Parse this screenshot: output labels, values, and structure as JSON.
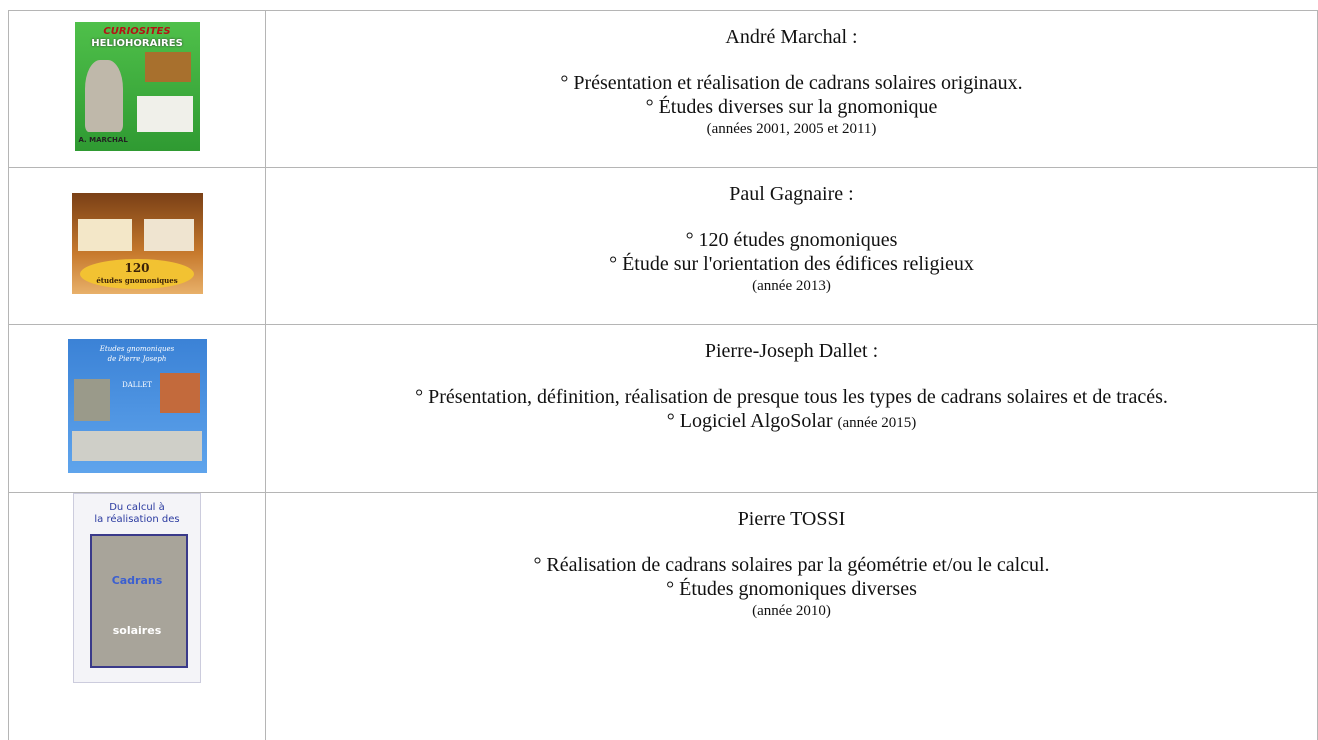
{
  "rows": [
    {
      "cover": [
        "CURIOSITES",
        "HELIOHORAIRES",
        "A. MARCHAL"
      ],
      "name": "André Marchal :",
      "items": [
        "° Présentation et réalisation de cadrans solaires originaux.",
        "° Études diverses sur la gnomonique"
      ],
      "note": "(années 2001, 2005 et 2011)"
    },
    {
      "cover": [
        "120",
        "études gnomoniques"
      ],
      "name": "Paul Gagnaire  :",
      "items": [
        "° 120 études gnomoniques",
        "° Étude sur l'orientation des édifices religieux"
      ],
      "note": "(année 2013)"
    },
    {
      "cover": [
        "Etudes gnomoniques",
        "de Pierre Joseph",
        "DALLET"
      ],
      "name": "Pierre-Joseph Dallet  :",
      "items": [
        "° Présentation, définition, réalisation de presque tous les types de cadrans solaires et de tracés.",
        "° Logiciel AlgoSolar"
      ],
      "note": "(année 2015)"
    },
    {
      "cover": [
        "Du calcul à",
        "la réalisation des",
        "Cadrans",
        "solaires"
      ],
      "name": "Pierre TOSSI",
      "items": [
        "° Réalisation de cadrans solaires par la géométrie et/ou le calcul.",
        "° Études gnomoniques diverses"
      ],
      "note": "(année 2010)"
    }
  ]
}
